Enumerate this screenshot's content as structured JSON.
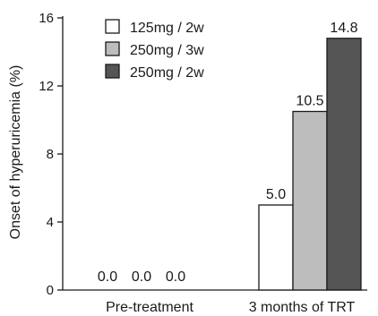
{
  "chart_data": {
    "type": "bar",
    "title": "",
    "xlabel": "",
    "ylabel": "Onset of hyperuricemia (%)",
    "ylim": [
      0,
      16
    ],
    "yticks": [
      0,
      4,
      8,
      12,
      16
    ],
    "categories": [
      "Pre-treatment",
      "3 months of TRT"
    ],
    "series": [
      {
        "name": "125mg / 2w",
        "values": [
          0.0,
          5.0
        ],
        "labels": [
          "0.0",
          "5.0"
        ],
        "color": "#ffffff"
      },
      {
        "name": "250mg / 3w",
        "values": [
          0.0,
          10.5
        ],
        "labels": [
          "0.0",
          "10.5"
        ],
        "color": "#bdbdbd"
      },
      {
        "name": "250mg / 2w",
        "values": [
          0.0,
          14.8
        ],
        "labels": [
          "0.0",
          "14.8"
        ],
        "color": "#555555"
      }
    ],
    "legend_position": "top-left",
    "grid": false
  }
}
